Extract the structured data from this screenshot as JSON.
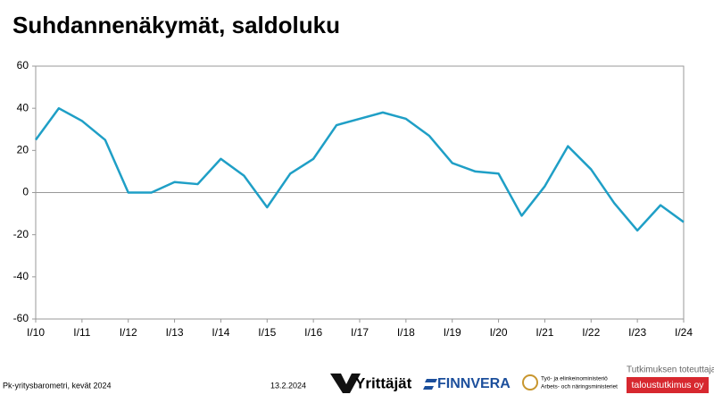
{
  "chart_data": {
    "type": "line",
    "title": "Suhdannenäkymät, saldoluku",
    "categories": [
      "I/10",
      null,
      "I/11",
      null,
      "I/12",
      null,
      "I/13",
      null,
      "I/14",
      null,
      "I/15",
      null,
      "I/16",
      null,
      "I/17",
      null,
      "I/18",
      null,
      "I/19",
      null,
      "I/20",
      null,
      "I/21",
      null,
      "I/22",
      null,
      "I/23",
      null,
      "I/24"
    ],
    "series": [
      {
        "name": "Suhdannenäkymät",
        "color": "#1f9fc6",
        "values": [
          25,
          40,
          34,
          25,
          0,
          0,
          5,
          4,
          16,
          8,
          -7,
          9,
          16,
          32,
          35,
          38,
          35,
          27,
          14,
          10,
          9,
          -11,
          3,
          22,
          11,
          -5,
          -18,
          -6,
          -14
        ]
      }
    ],
    "ylim": [
      -60,
      60
    ],
    "yticks": [
      -60,
      -40,
      -20,
      0,
      20,
      40,
      60
    ],
    "grid": false
  },
  "footer": {
    "source": "Pk-yritysbarometri, kevät 2024",
    "date": "13.2.2024",
    "logo1": "Yrittäjät",
    "logo2": "FINNVERA",
    "ministry1": "Työ- ja elinkeinoministeriö",
    "ministry2": "Arbets- och näringsministeriet",
    "researcher": "Tutkimuksen toteuttaja",
    "researcher_name": "taloustutkimus oy"
  }
}
